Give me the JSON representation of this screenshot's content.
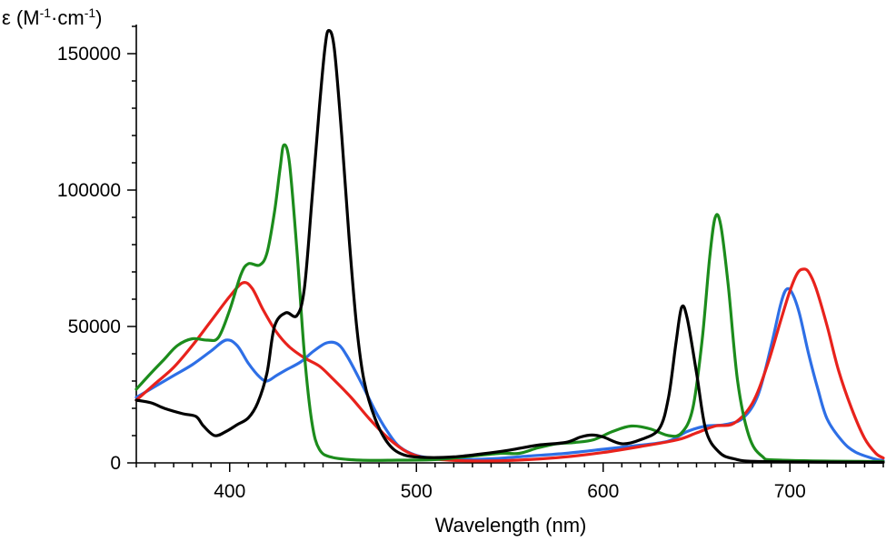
{
  "chart_data": {
    "type": "line",
    "xlabel": "Wavelength (nm)",
    "ylabel": {
      "prefix": "ε (M",
      "sup1": "-1",
      "middle": "·cm",
      "sup2": "-1",
      "suffix": ")"
    },
    "xlim": [
      350,
      750
    ],
    "ylim": [
      0,
      160000
    ],
    "x_major_ticks": [
      400,
      500,
      600,
      700
    ],
    "x_minor_step": 10,
    "y_major_ticks": [
      0,
      50000,
      100000,
      150000
    ],
    "y_minor_step": 10000,
    "grid": false,
    "series": [
      {
        "color": "#2e6fe6",
        "points": [
          [
            350,
            24000
          ],
          [
            360,
            28000
          ],
          [
            370,
            32000
          ],
          [
            380,
            36000
          ],
          [
            390,
            41000
          ],
          [
            398,
            45000
          ],
          [
            404,
            43000
          ],
          [
            410,
            36500
          ],
          [
            416,
            31500
          ],
          [
            420,
            30000
          ],
          [
            425,
            32000
          ],
          [
            430,
            34000
          ],
          [
            438,
            37000
          ],
          [
            445,
            41000
          ],
          [
            452,
            44000
          ],
          [
            458,
            43500
          ],
          [
            463,
            39000
          ],
          [
            470,
            30000
          ],
          [
            478,
            19000
          ],
          [
            484,
            12000
          ],
          [
            490,
            6500
          ],
          [
            497,
            3500
          ],
          [
            505,
            2000
          ],
          [
            520,
            1200
          ],
          [
            540,
            1500
          ],
          [
            560,
            2500
          ],
          [
            580,
            3500
          ],
          [
            600,
            5000
          ],
          [
            620,
            6500
          ],
          [
            635,
            8000
          ],
          [
            645,
            11500
          ],
          [
            655,
            13500
          ],
          [
            665,
            14000
          ],
          [
            675,
            16500
          ],
          [
            683,
            25000
          ],
          [
            690,
            43000
          ],
          [
            695,
            58000
          ],
          [
            698,
            63500
          ],
          [
            701,
            62500
          ],
          [
            705,
            55000
          ],
          [
            710,
            40000
          ],
          [
            715,
            27000
          ],
          [
            720,
            16000
          ],
          [
            728,
            8000
          ],
          [
            735,
            4000
          ],
          [
            745,
            1500
          ],
          [
            750,
            800
          ]
        ]
      },
      {
        "color": "#e8221c",
        "points": [
          [
            350,
            23000
          ],
          [
            360,
            29000
          ],
          [
            370,
            35000
          ],
          [
            380,
            43000
          ],
          [
            390,
            52000
          ],
          [
            400,
            61000
          ],
          [
            407,
            66000
          ],
          [
            412,
            64000
          ],
          [
            418,
            56000
          ],
          [
            425,
            48000
          ],
          [
            432,
            42500
          ],
          [
            440,
            38500
          ],
          [
            448,
            35500
          ],
          [
            455,
            31000
          ],
          [
            465,
            24000
          ],
          [
            475,
            16000
          ],
          [
            485,
            9000
          ],
          [
            495,
            4000
          ],
          [
            505,
            1800
          ],
          [
            520,
            900
          ],
          [
            540,
            700
          ],
          [
            560,
            1200
          ],
          [
            580,
            2200
          ],
          [
            600,
            3800
          ],
          [
            620,
            6000
          ],
          [
            640,
            8500
          ],
          [
            650,
            11000
          ],
          [
            660,
            13500
          ],
          [
            670,
            14500
          ],
          [
            680,
            22000
          ],
          [
            688,
            36000
          ],
          [
            695,
            52000
          ],
          [
            700,
            63000
          ],
          [
            704,
            69500
          ],
          [
            707,
            71000
          ],
          [
            710,
            70000
          ],
          [
            714,
            64000
          ],
          [
            720,
            50000
          ],
          [
            726,
            34000
          ],
          [
            733,
            20000
          ],
          [
            740,
            9000
          ],
          [
            746,
            3500
          ],
          [
            750,
            1800
          ]
        ]
      },
      {
        "color": "#1c8c1c",
        "points": [
          [
            350,
            27000
          ],
          [
            358,
            33000
          ],
          [
            365,
            38000
          ],
          [
            372,
            43000
          ],
          [
            380,
            45500
          ],
          [
            388,
            45000
          ],
          [
            394,
            46000
          ],
          [
            400,
            56000
          ],
          [
            406,
            69000
          ],
          [
            410,
            73000
          ],
          [
            416,
            72500
          ],
          [
            420,
            77000
          ],
          [
            424,
            92000
          ],
          [
            427,
            108000
          ],
          [
            429,
            116500
          ],
          [
            432,
            110000
          ],
          [
            436,
            78000
          ],
          [
            440,
            40000
          ],
          [
            444,
            15000
          ],
          [
            448,
            5000
          ],
          [
            455,
            2000
          ],
          [
            470,
            1000
          ],
          [
            490,
            1000
          ],
          [
            510,
            1200
          ],
          [
            530,
            2500
          ],
          [
            545,
            3500
          ],
          [
            555,
            3500
          ],
          [
            565,
            5500
          ],
          [
            575,
            7000
          ],
          [
            585,
            7500
          ],
          [
            595,
            8500
          ],
          [
            605,
            11500
          ],
          [
            615,
            13500
          ],
          [
            625,
            12500
          ],
          [
            635,
            10000
          ],
          [
            642,
            11000
          ],
          [
            648,
            20000
          ],
          [
            653,
            45000
          ],
          [
            657,
            75000
          ],
          [
            660,
            90000
          ],
          [
            663,
            87000
          ],
          [
            667,
            65000
          ],
          [
            672,
            30000
          ],
          [
            678,
            10000
          ],
          [
            685,
            2500
          ],
          [
            695,
            1000
          ],
          [
            750,
            500
          ]
        ]
      },
      {
        "color": "#000000",
        "points": [
          [
            350,
            23000
          ],
          [
            358,
            22000
          ],
          [
            365,
            20000
          ],
          [
            375,
            18000
          ],
          [
            382,
            17000
          ],
          [
            386,
            13500
          ],
          [
            392,
            10000
          ],
          [
            398,
            11500
          ],
          [
            404,
            14000
          ],
          [
            410,
            16500
          ],
          [
            415,
            22000
          ],
          [
            420,
            33000
          ],
          [
            424,
            50000
          ],
          [
            430,
            55000
          ],
          [
            436,
            54000
          ],
          [
            440,
            64000
          ],
          [
            444,
            96000
          ],
          [
            448,
            130000
          ],
          [
            451,
            152000
          ],
          [
            453,
            158500
          ],
          [
            456,
            152000
          ],
          [
            460,
            120000
          ],
          [
            464,
            82000
          ],
          [
            468,
            50000
          ],
          [
            472,
            30000
          ],
          [
            478,
            16000
          ],
          [
            485,
            7000
          ],
          [
            493,
            3000
          ],
          [
            505,
            2000
          ],
          [
            520,
            2200
          ],
          [
            535,
            3300
          ],
          [
            550,
            4700
          ],
          [
            565,
            6500
          ],
          [
            580,
            7500
          ],
          [
            588,
            9500
          ],
          [
            594,
            10200
          ],
          [
            600,
            9500
          ],
          [
            610,
            7000
          ],
          [
            620,
            8500
          ],
          [
            630,
            12500
          ],
          [
            635,
            24000
          ],
          [
            639,
            44000
          ],
          [
            642,
            57000
          ],
          [
            645,
            53000
          ],
          [
            650,
            33000
          ],
          [
            655,
            12000
          ],
          [
            662,
            4000
          ],
          [
            670,
            1500
          ],
          [
            685,
            500
          ],
          [
            750,
            200
          ]
        ]
      }
    ]
  }
}
